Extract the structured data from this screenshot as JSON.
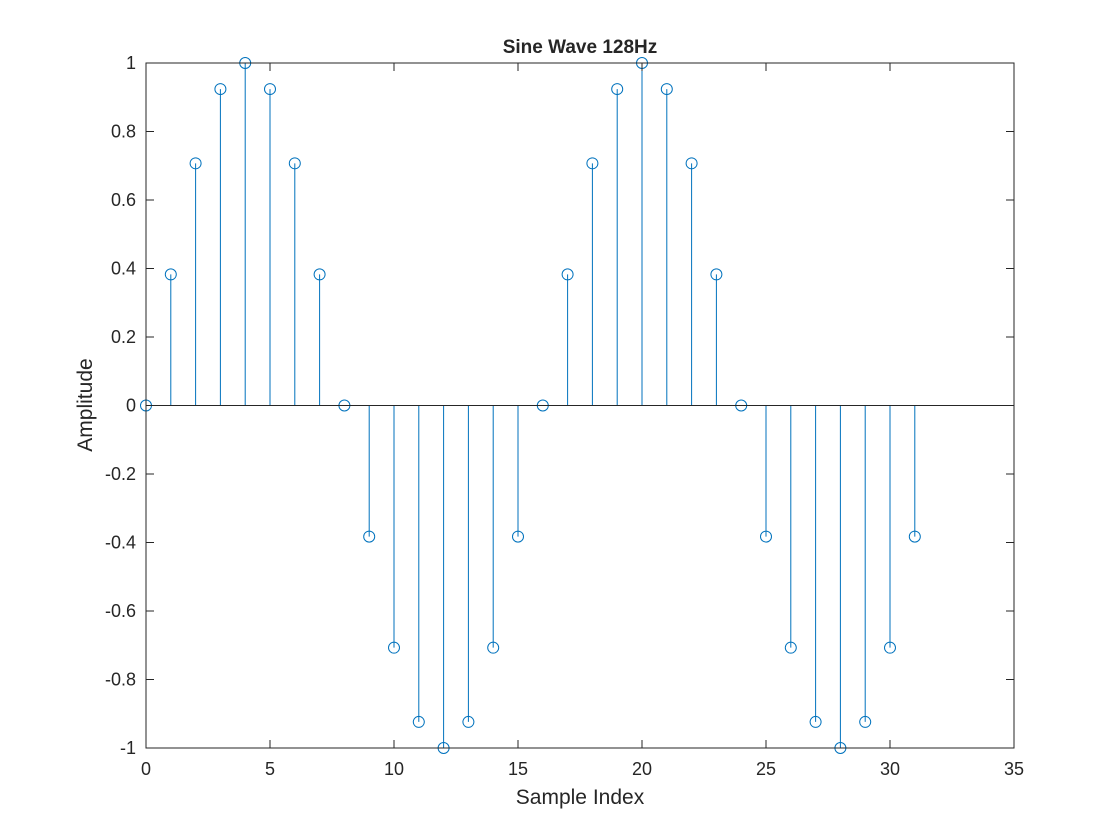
{
  "chart_data": {
    "type": "stem",
    "title": "Sine Wave 128Hz",
    "xlabel": "Sample Index",
    "ylabel": "Amplitude",
    "xlim": [
      0,
      35
    ],
    "ylim": [
      -1,
      1
    ],
    "xticks": [
      0,
      5,
      10,
      15,
      20,
      25,
      30,
      35
    ],
    "xtick_labels": [
      "0",
      "5",
      "10",
      "15",
      "20",
      "25",
      "30",
      "35"
    ],
    "yticks": [
      -1,
      -0.8,
      -0.6,
      -0.4,
      -0.2,
      0,
      0.2,
      0.4,
      0.6,
      0.8,
      1
    ],
    "ytick_labels": [
      "-1",
      "-0.8",
      "-0.6",
      "-0.4",
      "-0.2",
      "0",
      "0.2",
      "0.4",
      "0.6",
      "0.8",
      "1"
    ],
    "grid": false,
    "series_color": "#0072BD",
    "x": [
      0,
      1,
      2,
      3,
      4,
      5,
      6,
      7,
      8,
      9,
      10,
      11,
      12,
      13,
      14,
      15,
      16,
      17,
      18,
      19,
      20,
      21,
      22,
      23,
      24,
      25,
      26,
      27,
      28,
      29,
      30,
      31
    ],
    "values": [
      0,
      0.3827,
      0.7071,
      0.9239,
      1,
      0.9239,
      0.7071,
      0.3827,
      0,
      -0.3827,
      -0.7071,
      -0.9239,
      -1,
      -0.9239,
      -0.7071,
      -0.3827,
      0,
      0.3827,
      0.7071,
      0.9239,
      1,
      0.9239,
      0.7071,
      0.3827,
      0,
      -0.3827,
      -0.7071,
      -0.9239,
      -1,
      -0.9239,
      -0.7071,
      -0.3827
    ]
  }
}
